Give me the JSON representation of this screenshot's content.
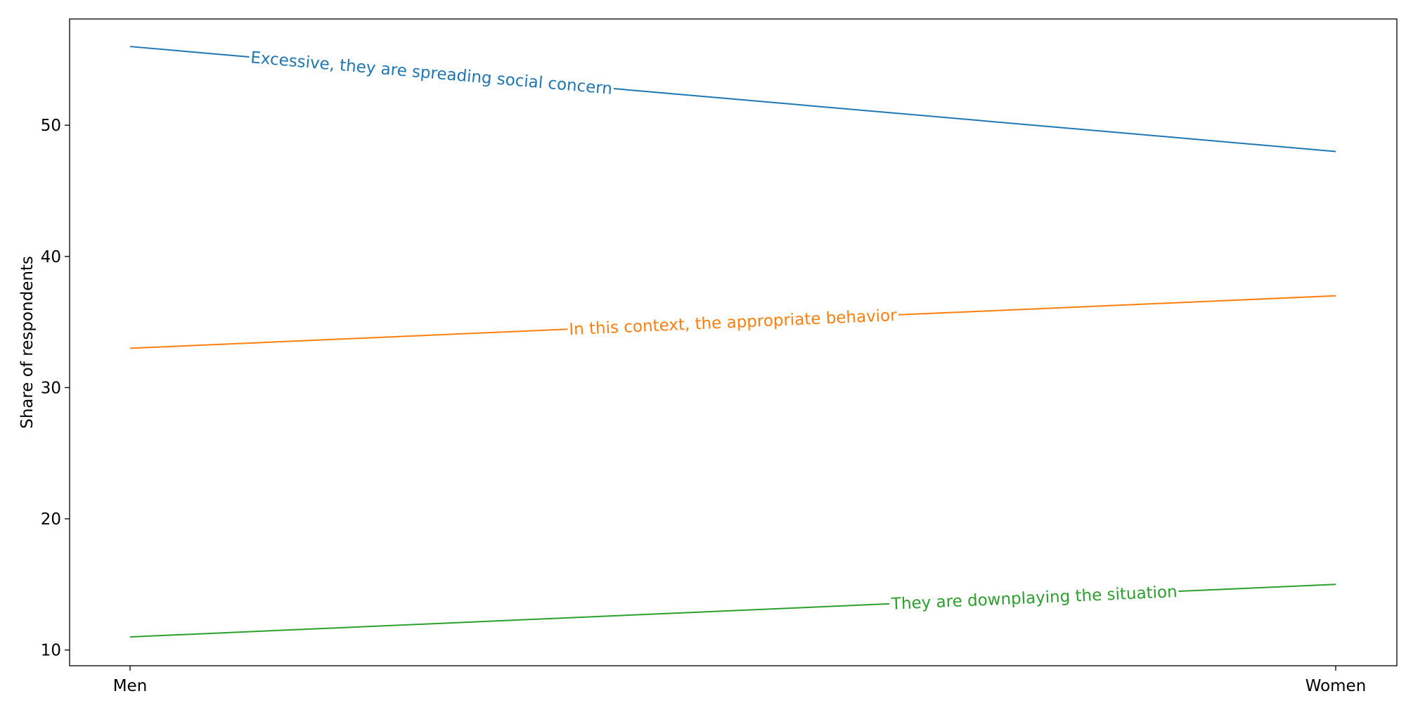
{
  "chart_data": {
    "type": "line",
    "title": "",
    "xlabel": "",
    "ylabel": "Share of respondents",
    "categories": [
      "Men",
      "Women"
    ],
    "ylim": [
      8.8,
      58.1
    ],
    "yticks": [
      10,
      20,
      30,
      40,
      50
    ],
    "grid": false,
    "legend": "none",
    "series": [
      {
        "name": "Excessive, they are spreading social concern",
        "values": [
          56,
          48
        ],
        "color": "#1f77b4",
        "label_position": 0.25
      },
      {
        "name": "In this context, the appropriate behavior",
        "values": [
          33,
          37
        ],
        "color": "#ff7f0e",
        "label_position": 0.5
      },
      {
        "name": "They are downplaying the situation",
        "values": [
          11,
          15
        ],
        "color": "#2ca02c",
        "label_position": 0.75
      }
    ]
  }
}
